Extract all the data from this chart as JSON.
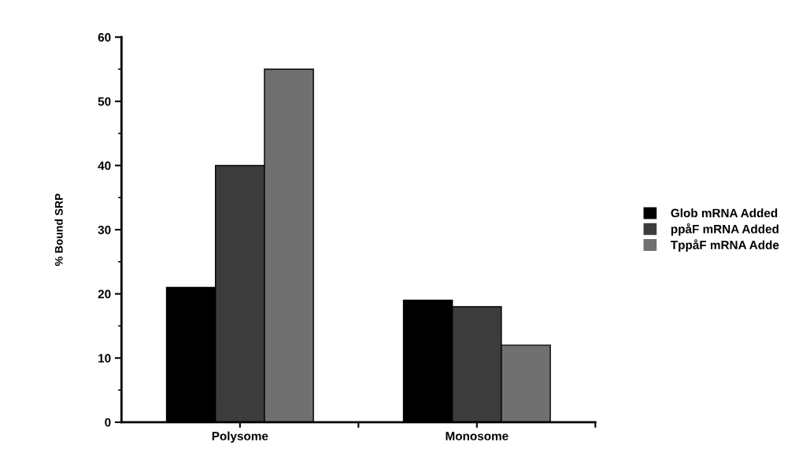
{
  "chart_data": {
    "type": "bar",
    "ylabel": "% Bound SRP",
    "categories": [
      "Polysome",
      "Monosome"
    ],
    "series": [
      {
        "name": "Glob mRNA Added",
        "color": "#000000",
        "values": [
          21,
          19
        ]
      },
      {
        "name": "ppåF mRNA Added",
        "color": "#3c3c3c",
        "values": [
          40,
          18
        ]
      },
      {
        "name": "TppåF mRNA Adde",
        "color": "#707070",
        "values": [
          55,
          12
        ]
      }
    ],
    "ylim": [
      0,
      60
    ],
    "yticks": [
      0,
      10,
      20,
      30,
      40,
      50,
      60
    ],
    "grid": false,
    "legend": "right"
  }
}
